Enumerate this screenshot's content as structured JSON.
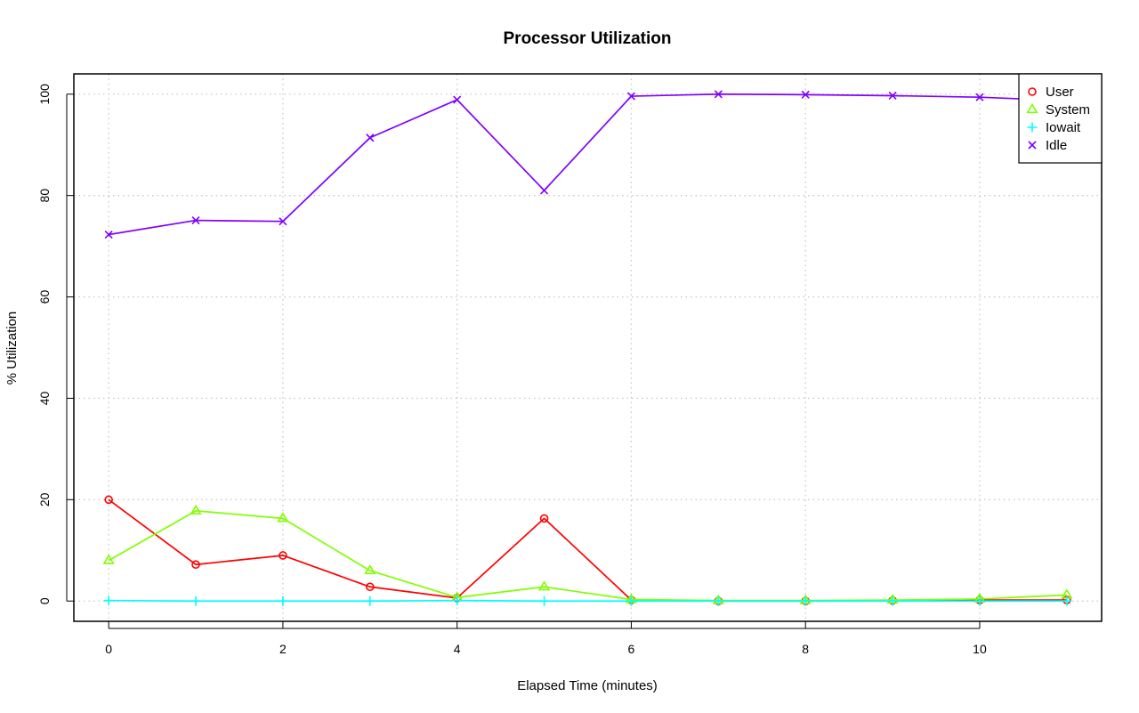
{
  "chart_data": {
    "type": "line",
    "title": "Processor Utilization",
    "xlabel": "Elapsed Time (minutes)",
    "ylabel": "% Utilization",
    "xlim": [
      -0.4,
      11.4
    ],
    "ylim": [
      -4,
      104
    ],
    "x_ticks": [
      "0",
      "2",
      "4",
      "6",
      "8",
      "10"
    ],
    "y_ticks": [
      "0",
      "20",
      "40",
      "60",
      "80",
      "100"
    ],
    "grid": true,
    "legend_position": "top-right",
    "x": [
      0,
      1,
      2,
      3,
      4,
      5,
      6,
      7,
      8,
      9,
      10,
      11
    ],
    "series": [
      {
        "name": "User",
        "color": "#ff0000",
        "marker": "circle",
        "values": [
          20.0,
          7.2,
          9.0,
          2.8,
          0.6,
          16.3,
          0.2,
          0.0,
          0.0,
          0.1,
          0.2,
          0.2
        ]
      },
      {
        "name": "System",
        "color": "#80ff00",
        "marker": "triangle",
        "values": [
          8.0,
          17.8,
          16.3,
          6.0,
          0.7,
          2.8,
          0.3,
          0.1,
          0.1,
          0.2,
          0.4,
          1.2
        ]
      },
      {
        "name": "Iowait",
        "color": "#00ffff",
        "marker": "plus",
        "values": [
          0.1,
          0.0,
          0.0,
          0.0,
          0.1,
          0.0,
          0.0,
          0.0,
          0.0,
          0.0,
          0.0,
          0.0
        ]
      },
      {
        "name": "Idle",
        "color": "#8000ff",
        "marker": "cross",
        "values": [
          72.3,
          75.1,
          74.9,
          91.4,
          98.9,
          81.0,
          99.6,
          100.0,
          99.9,
          99.7,
          99.4,
          98.7
        ]
      }
    ]
  }
}
